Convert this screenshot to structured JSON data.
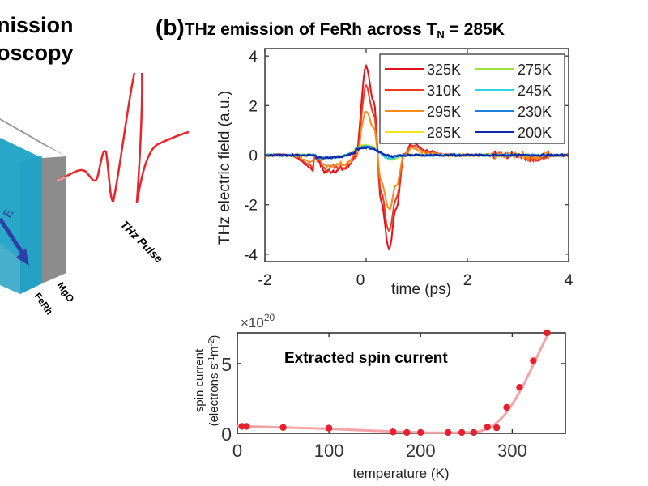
{
  "left_panel": {
    "heading_line1": "nission",
    "heading_line2": "oscopy",
    "pulse_label": "THz Pulse",
    "layer_labels": [
      "MgO",
      "FeRh"
    ],
    "field_label": "E",
    "colors": {
      "pulse": "#e8242c",
      "slab_front": "#2aa6c9",
      "slab_side": "#8c8c8c",
      "arrow": "#2b3fa6"
    }
  },
  "panel_b": {
    "label": "(b)",
    "title_main": "THz emission of FeRh across T",
    "title_sub": "N",
    "title_tail": " = 285K"
  },
  "chart_data": [
    {
      "type": "line",
      "title": "THz emission of FeRh across T_N = 285K",
      "xlabel": "time (ps)",
      "ylabel": "THz electric field (a.u.)",
      "xlim": [
        -2,
        4
      ],
      "ylim": [
        -4.3,
        4.3
      ],
      "xticks": [
        -2,
        0,
        2,
        4
      ],
      "yticks": [
        -4,
        -2,
        0,
        2,
        4
      ],
      "grid": false,
      "legend": "top-right",
      "series": [
        {
          "name": "325K",
          "color": "#e3111c",
          "peak": 3.6,
          "trough": -3.8,
          "pre_dip": -0.6
        },
        {
          "name": "310K",
          "color": "#f2361f",
          "peak": 2.8,
          "trough": -3.1,
          "pre_dip": -0.5
        },
        {
          "name": "295K",
          "color": "#f98b1a",
          "peak": 1.8,
          "trough": -2.2,
          "pre_dip": -0.35
        },
        {
          "name": "285K",
          "color": "#f2e618",
          "peak": 0.4,
          "trough": -0.25,
          "pre_dip": -0.05
        },
        {
          "name": "275K",
          "color": "#9be33a",
          "peak": 0.38,
          "trough": -0.22,
          "pre_dip": -0.05
        },
        {
          "name": "245K",
          "color": "#2ed3e6",
          "peak": 0.35,
          "trough": -0.2,
          "pre_dip": -0.05
        },
        {
          "name": "230K",
          "color": "#1f7fe0",
          "peak": 0.33,
          "trough": -0.1,
          "pre_dip": -0.08
        },
        {
          "name": "200K",
          "color": "#1424a8",
          "peak": 0.3,
          "trough": -0.08,
          "pre_dip": -0.1
        }
      ],
      "waveform_model": {
        "x": [
          -2,
          -1.5,
          -1.0,
          -0.8,
          -0.6,
          -0.4,
          -0.2,
          0.0,
          0.15,
          0.3,
          0.45,
          0.6,
          0.75,
          0.9,
          1.2,
          1.6,
          2.0,
          2.5,
          3.0,
          3.3,
          3.6,
          4.0
        ],
        "shape": [
          0,
          0,
          -0.15,
          -1.0,
          -0.9,
          -0.8,
          0.0,
          1.0,
          0.6,
          -0.5,
          -1.0,
          -0.55,
          0.0,
          0.15,
          0.05,
          0.0,
          0.0,
          0.0,
          0.0,
          -0.05,
          0.0,
          0.0
        ]
      }
    },
    {
      "type": "scatter",
      "title": "Extracted spin current",
      "xlabel": "temperature (K)",
      "ylabel": "spin current (electrons s⁻¹m⁻²)",
      "yscale_label": "×10",
      "yscale_exp": "20",
      "xlim": [
        0,
        358
      ],
      "ylim": [
        0,
        7.2
      ],
      "xticks": [
        0,
        100,
        200,
        300
      ],
      "yticks": [
        0,
        5
      ],
      "grid": false,
      "point_color": "#e8202e",
      "fit_color": "#f4a3a8",
      "points": {
        "x": [
          5,
          10,
          50,
          100,
          170,
          185,
          200,
          230,
          245,
          258,
          273,
          283,
          294,
          308,
          323,
          338
        ],
        "y": [
          0.5,
          0.5,
          0.42,
          0.37,
          0.1,
          0.06,
          0.06,
          0.06,
          0.06,
          0.06,
          0.45,
          0.4,
          1.86,
          3.3,
          5.2,
          7.2
        ]
      },
      "fit": {
        "x": [
          0,
          50,
          100,
          150,
          200,
          240,
          260,
          270,
          280,
          290,
          300,
          310,
          320,
          330,
          340
        ],
        "y": [
          0.52,
          0.42,
          0.32,
          0.18,
          0.06,
          0.05,
          0.1,
          0.25,
          0.6,
          1.2,
          2.1,
          3.2,
          4.5,
          5.9,
          7.25
        ]
      }
    }
  ]
}
